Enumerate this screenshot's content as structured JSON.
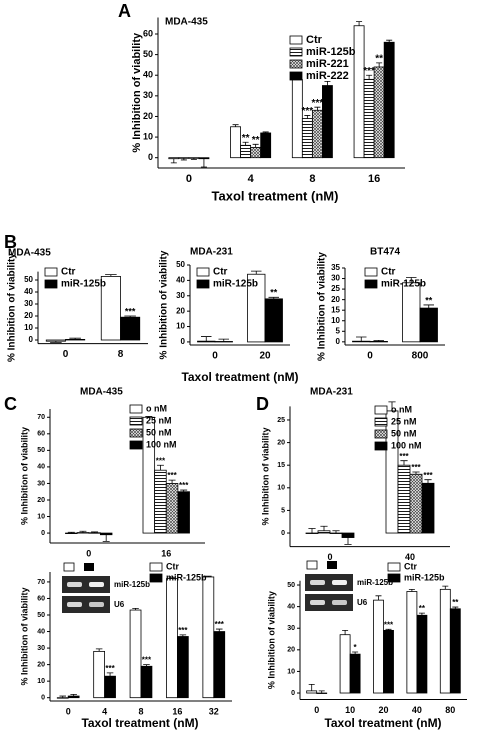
{
  "chart_data": [
    {
      "type": "bar",
      "panel": "A",
      "title": "MDA-435",
      "x_label": "Taxol treatment (nM)",
      "y_label": "% Inhibition of viability",
      "categories": [
        "0",
        "4",
        "8",
        "16"
      ],
      "series": [
        {
          "name": "Ctr",
          "pattern": "white",
          "values": [
            -0.5,
            15,
            38,
            64
          ],
          "errors": [
            2,
            1,
            1,
            2
          ]
        },
        {
          "name": "miR-125b",
          "pattern": "hstripes",
          "values": [
            -0.3,
            6,
            19,
            38
          ],
          "errors": [
            0.8,
            1.5,
            1.5,
            2
          ],
          "significance": [
            null,
            "**",
            "***",
            "***"
          ]
        },
        {
          "name": "miR-221",
          "pattern": "crosshatch",
          "values": [
            -0.3,
            5,
            23,
            44
          ],
          "errors": [
            0.5,
            1.5,
            1.5,
            2
          ],
          "significance": [
            null,
            "**",
            "***",
            "**"
          ]
        },
        {
          "name": "miR-222",
          "pattern": "black",
          "values": [
            -0.5,
            12,
            35,
            56
          ],
          "errors": [
            4,
            0.5,
            2,
            1
          ]
        }
      ],
      "ylim": [
        -5,
        68
      ],
      "yticks": [
        0,
        10,
        20,
        30,
        40,
        50,
        60
      ],
      "legend": "upper left"
    },
    {
      "type": "bar",
      "panel": "B",
      "title": "MDA-435",
      "y_label": "% Inhibition of viability",
      "categories": [
        "0",
        "8"
      ],
      "series": [
        {
          "name": "Ctr",
          "pattern": "white",
          "values": [
            -1,
            53
          ],
          "errors": [
            1,
            1.5
          ]
        },
        {
          "name": "miR-125b",
          "pattern": "black",
          "values": [
            0.5,
            19
          ],
          "errors": [
            1,
            1
          ],
          "significance": [
            null,
            "***"
          ]
        }
      ],
      "ylim": [
        -3,
        57
      ],
      "yticks": [
        0,
        10,
        20,
        30,
        40,
        50
      ],
      "legend": "upper left"
    },
    {
      "type": "bar",
      "title": "MDA-231",
      "x_label": "Taxol treatment (nM)",
      "y_label": "% Inhibition of viability",
      "categories": [
        "0",
        "20"
      ],
      "series": [
        {
          "name": "Ctr",
          "pattern": "white",
          "values": [
            0.5,
            44
          ],
          "errors": [
            3,
            2
          ]
        },
        {
          "name": "miR-125b",
          "pattern": "black",
          "values": [
            0.3,
            28
          ],
          "errors": [
            1.5,
            1
          ],
          "significance": [
            null,
            "**"
          ]
        }
      ],
      "ylim": [
        -2,
        50
      ],
      "yticks": [
        0,
        10,
        20,
        30,
        40,
        50
      ],
      "legend": "upper left"
    },
    {
      "type": "bar",
      "title": "BT474",
      "y_label": "% Inhibition of viability",
      "categories": [
        "0",
        "800"
      ],
      "series": [
        {
          "name": "Ctr",
          "pattern": "white",
          "values": [
            0.3,
            28
          ],
          "errors": [
            2,
            2.5
          ]
        },
        {
          "name": "miR-125b",
          "pattern": "black",
          "values": [
            0.2,
            16
          ],
          "errors": [
            0.5,
            1.5
          ],
          "significance": [
            null,
            "**"
          ]
        }
      ],
      "ylim": [
        -1.5,
        35
      ],
      "yticks": [
        0,
        5,
        10,
        15,
        20,
        25,
        30,
        35
      ],
      "legend": "upper left"
    },
    {
      "type": "bar",
      "panel": "C",
      "title": "MDA-435",
      "y_label": "% Inhibition of viability",
      "categories": [
        "0",
        "16"
      ],
      "series": [
        {
          "name": "o nM",
          "pattern": "white",
          "values": [
            0,
            70
          ],
          "errors": [
            0.5,
            0.5
          ]
        },
        {
          "name": "25 nM",
          "pattern": "hstripes",
          "values": [
            0.3,
            38
          ],
          "errors": [
            0.8,
            3
          ],
          "significance": [
            null,
            "***"
          ]
        },
        {
          "name": "50 nM",
          "pattern": "crosshatch",
          "values": [
            0.2,
            30
          ],
          "errors": [
            0.5,
            2
          ],
          "significance": [
            null,
            "***"
          ]
        },
        {
          "name": "100 nM",
          "pattern": "black",
          "values": [
            -1,
            25
          ],
          "errors": [
            4,
            1
          ],
          "significance": [
            null,
            "***"
          ]
        }
      ],
      "ylim": [
        -6,
        75
      ],
      "yticks": [
        0,
        10,
        20,
        30,
        40,
        50,
        60,
        70
      ],
      "legend": "upper left"
    },
    {
      "type": "bar",
      "x_label": "Taxol treatment (nM)",
      "y_label": "% Inhibition of viability",
      "categories": [
        "0",
        "4",
        "8",
        "16",
        "32"
      ],
      "series": [
        {
          "name": "Ctr",
          "pattern": "white",
          "values": [
            0,
            28,
            53,
            72,
            73
          ],
          "errors": [
            1,
            1.5,
            1,
            0.5,
            0.5
          ]
        },
        {
          "name": "miR-125b",
          "pattern": "black",
          "values": [
            1,
            13,
            19,
            37,
            40
          ],
          "errors": [
            1,
            2,
            1,
            1,
            1.5
          ],
          "significance": [
            null,
            "***",
            "***",
            "***",
            "***"
          ]
        }
      ],
      "ylim": [
        -2,
        76
      ],
      "yticks": [
        0,
        10,
        20,
        30,
        40,
        50,
        60,
        70
      ],
      "legend": "upper right",
      "inset": {
        "labels": [
          "miR-125b",
          "U6"
        ]
      }
    },
    {
      "type": "bar",
      "panel": "D",
      "title": "MDA-231",
      "y_label": "% Inhibition of viability",
      "categories": [
        "0",
        "40"
      ],
      "series": [
        {
          "name": "o nM",
          "pattern": "white",
          "values": [
            0,
            27
          ],
          "errors": [
            1,
            2
          ]
        },
        {
          "name": "25 nM",
          "pattern": "hstripes",
          "values": [
            0.5,
            15
          ],
          "errors": [
            1,
            1
          ],
          "significance": [
            null,
            "***"
          ]
        },
        {
          "name": "50 nM",
          "pattern": "crosshatch",
          "values": [
            0,
            13
          ],
          "errors": [
            0.5,
            0.5
          ],
          "significance": [
            null,
            "***"
          ]
        },
        {
          "name": "100 nM",
          "pattern": "black",
          "values": [
            -1,
            11
          ],
          "errors": [
            1.5,
            0.8
          ],
          "significance": [
            null,
            "***"
          ]
        }
      ],
      "ylim": [
        -3,
        28
      ],
      "yticks": [
        0,
        5,
        10,
        15,
        20,
        25
      ],
      "legend": "upper left"
    },
    {
      "type": "bar",
      "x_label": "Taxol treatment (nM)",
      "y_label": "% Inhibition of viability",
      "categories": [
        "0",
        "10",
        "20",
        "40",
        "80"
      ],
      "series": [
        {
          "name": "Ctr",
          "pattern": "white",
          "values": [
            1,
            27,
            43,
            47,
            48
          ],
          "errors": [
            3,
            2,
            2,
            1,
            1.5
          ]
        },
        {
          "name": "miR-125b",
          "pattern": "black",
          "values": [
            0,
            18,
            29,
            36,
            39
          ],
          "errors": [
            1,
            1,
            0.5,
            1,
            0.8
          ],
          "significance": [
            null,
            "*",
            "***",
            "**",
            "**"
          ]
        }
      ],
      "ylim": [
        -3,
        52
      ],
      "yticks": [
        0,
        10,
        20,
        30,
        40,
        50
      ],
      "legend": "upper right",
      "inset": {
        "labels": [
          "miR-125b",
          "U6"
        ]
      }
    }
  ]
}
